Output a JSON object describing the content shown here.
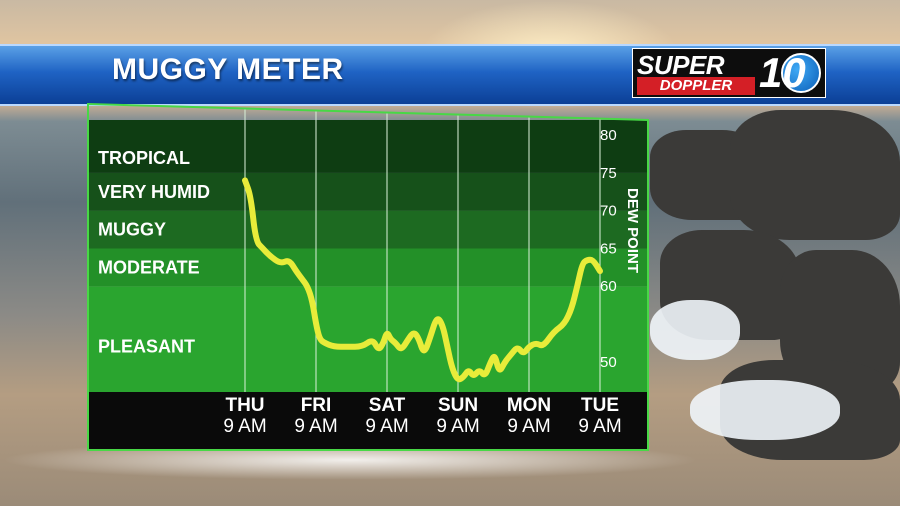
{
  "header": {
    "title": "MUGGY METER",
    "logo": {
      "top": "SUPER",
      "bottom": "DOPPLER",
      "number": "10"
    }
  },
  "colors": {
    "banner": "#1f63c4",
    "line": "#e8ec3a",
    "band_tropical": "#0e3d12",
    "band_very_humid": "#16511a",
    "band_muggy": "#1d6a21",
    "band_moderate": "#239028",
    "band_pleasant": "#2aa52f",
    "footer": "#0a0a0a"
  },
  "chart_data": {
    "type": "line",
    "title": "MUGGY METER",
    "ylabel": "DEW POINT",
    "ylim": [
      46,
      82
    ],
    "yticks": [
      50,
      60,
      65,
      70,
      75,
      80
    ],
    "bands": [
      {
        "label": "TROPICAL",
        "from": 75,
        "to": 82
      },
      {
        "label": "VERY HUMID",
        "from": 70,
        "to": 75
      },
      {
        "label": "MUGGY",
        "from": 65,
        "to": 70
      },
      {
        "label": "MODERATE",
        "from": 60,
        "to": 65
      },
      {
        "label": "PLEASANT",
        "from": 46,
        "to": 60
      }
    ],
    "x_ticks": [
      {
        "day": "THU",
        "time": "9 AM",
        "t": 0
      },
      {
        "day": "FRI",
        "time": "9 AM",
        "t": 1
      },
      {
        "day": "SAT",
        "time": "9 AM",
        "t": 2
      },
      {
        "day": "SUN",
        "time": "9 AM",
        "t": 3
      },
      {
        "day": "MON",
        "time": "9 AM",
        "t": 4
      },
      {
        "day": "TUE",
        "time": "9 AM",
        "t": 5
      }
    ],
    "series": [
      {
        "x": [
          0,
          0.08,
          0.15,
          0.25,
          0.35,
          0.5,
          0.62,
          0.72,
          0.8,
          0.88,
          0.95,
          1.0,
          1.05,
          1.12,
          1.25,
          1.45,
          1.65,
          1.8,
          1.88,
          1.95,
          2.0,
          2.05,
          2.12,
          2.2,
          2.3,
          2.38,
          2.45,
          2.52,
          2.6,
          2.7,
          2.78,
          2.85,
          2.92,
          3.0,
          3.08,
          3.15,
          3.22,
          3.3,
          3.38,
          3.46,
          3.52,
          3.58,
          3.66,
          3.75,
          3.84,
          3.92,
          4.0,
          4.1,
          4.2,
          4.35,
          4.5,
          4.6,
          4.68,
          4.75,
          4.82,
          4.9,
          5.0
        ],
        "y": [
          74,
          72,
          66,
          65,
          64,
          63,
          63.5,
          62,
          61,
          60,
          58,
          55,
          53,
          52.5,
          52,
          52,
          52,
          53,
          51.5,
          52.5,
          54,
          53,
          52.5,
          51.5,
          53,
          54,
          53,
          51,
          53,
          56,
          55,
          52,
          49,
          47.5,
          48,
          49,
          48,
          49,
          48,
          50,
          51,
          48.5,
          50,
          51,
          52,
          51,
          52,
          52.5,
          52,
          54,
          55,
          57,
          60,
          63,
          63.5,
          63.5,
          62
        ]
      }
    ]
  }
}
